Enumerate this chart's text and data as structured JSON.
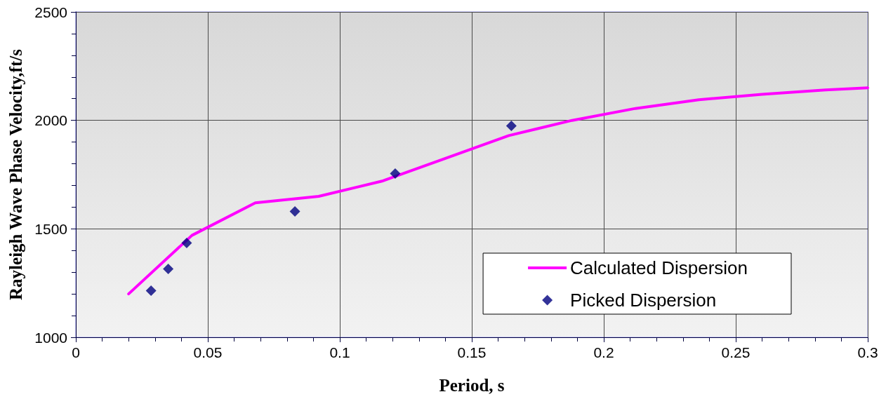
{
  "chart_data": {
    "type": "line",
    "xlabel": "Period, s",
    "ylabel": "Rayleigh Wave Phase Velocity,ft/s",
    "xlim": [
      0,
      0.3
    ],
    "ylim": [
      1000,
      2500
    ],
    "xticks": [
      0,
      {
        "value": 0.01,
        "label": null
      },
      {
        "value": 0.02,
        "label": null
      },
      {
        "value": 0.03,
        "label": null
      },
      {
        "value": 0.04,
        "label": null
      },
      0.05,
      {
        "value": 0.06,
        "label": null
      },
      {
        "value": 0.07,
        "label": null
      },
      {
        "value": 0.08,
        "label": null
      },
      {
        "value": 0.09,
        "label": null
      },
      0.1,
      {
        "value": 0.11,
        "label": null
      },
      {
        "value": 0.12,
        "label": null
      },
      {
        "value": 0.13,
        "label": null
      },
      {
        "value": 0.14,
        "label": null
      },
      0.15,
      {
        "value": 0.16,
        "label": null
      },
      {
        "value": 0.17,
        "label": null
      },
      {
        "value": 0.18,
        "label": null
      },
      {
        "value": 0.19,
        "label": null
      },
      0.2,
      {
        "value": 0.21,
        "label": null
      },
      {
        "value": 0.22,
        "label": null
      },
      {
        "value": 0.23,
        "label": null
      },
      {
        "value": 0.24,
        "label": null
      },
      0.25,
      {
        "value": 0.26,
        "label": null
      },
      {
        "value": 0.27,
        "label": null
      },
      {
        "value": 0.28,
        "label": null
      },
      {
        "value": 0.29,
        "label": null
      },
      0.3
    ],
    "yticks": [
      1000,
      {
        "value": 1100,
        "label": null
      },
      {
        "value": 1200,
        "label": null
      },
      {
        "value": 1300,
        "label": null
      },
      {
        "value": 1400,
        "label": null
      },
      1500,
      {
        "value": 1600,
        "label": null
      },
      {
        "value": 1700,
        "label": null
      },
      {
        "value": 1800,
        "label": null
      },
      {
        "value": 1900,
        "label": null
      },
      2000,
      {
        "value": 2100,
        "label": null
      },
      {
        "value": 2200,
        "label": null
      },
      {
        "value": 2300,
        "label": null
      },
      {
        "value": 2400,
        "label": null
      },
      2500
    ],
    "grid": true,
    "legend": "bottom right",
    "series": [
      {
        "name": "Calculated Dispersion",
        "type": "line",
        "color": "#ff00ff",
        "marker": "none",
        "line_style": "solid",
        "x": [
          0.02,
          0.044,
          0.068,
          0.092,
          0.116,
          0.14,
          0.164,
          0.188,
          0.212,
          0.236,
          0.26,
          0.284,
          0.3
        ],
        "values": [
          1200,
          1470,
          1620,
          1650,
          1720,
          1825,
          1930,
          2000,
          2055,
          2095,
          2120,
          2140,
          2150
        ]
      },
      {
        "name": "Picked Dispersion",
        "type": "scatter",
        "color": "#000080",
        "marker": "diamond",
        "x": [
          0.0285,
          0.035,
          0.042,
          0.083,
          0.121,
          0.165
        ],
        "values": [
          1215,
          1315,
          1435,
          1580,
          1755,
          1975
        ]
      }
    ]
  }
}
